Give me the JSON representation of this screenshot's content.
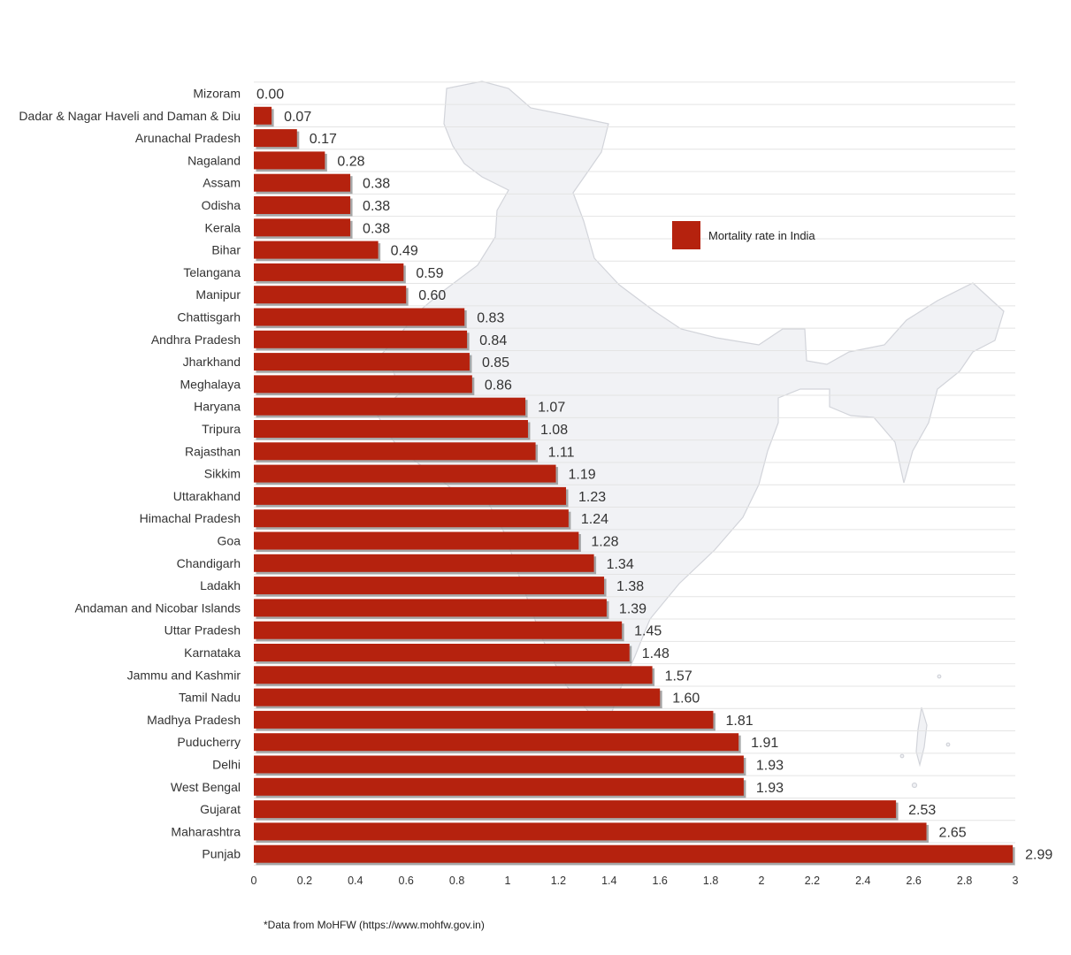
{
  "chart_data": {
    "type": "bar",
    "orientation": "horizontal",
    "categories": [
      "Mizoram",
      "Dadar & Nagar Haveli and Daman & Diu",
      "Arunachal Pradesh",
      "Nagaland",
      "Assam",
      "Odisha",
      "Kerala",
      "Bihar",
      "Telangana",
      "Manipur",
      "Chattisgarh",
      "Andhra Pradesh",
      "Jharkhand",
      "Meghalaya",
      "Haryana",
      "Tripura",
      "Rajasthan",
      "Sikkim",
      "Uttarakhand",
      "Himachal Pradesh",
      "Goa",
      "Chandigarh",
      "Ladakh",
      "Andaman and Nicobar Islands",
      "Uttar Pradesh",
      "Karnataka",
      "Jammu and Kashmir",
      "Tamil Nadu",
      "Madhya Pradesh",
      "Puducherry",
      "Delhi",
      "West Bengal",
      "Gujarat",
      "Maharashtra",
      "Punjab"
    ],
    "series": [
      {
        "name": "Mortality rate in India",
        "values": [
          0.0,
          0.07,
          0.17,
          0.28,
          0.38,
          0.38,
          0.38,
          0.49,
          0.59,
          0.6,
          0.83,
          0.84,
          0.85,
          0.86,
          1.07,
          1.08,
          1.11,
          1.19,
          1.23,
          1.24,
          1.28,
          1.34,
          1.38,
          1.39,
          1.45,
          1.48,
          1.57,
          1.6,
          1.81,
          1.91,
          1.93,
          1.93,
          2.53,
          2.65,
          2.99
        ]
      }
    ],
    "value_labels": [
      "0.00",
      "0.07",
      "0.17",
      "0.28",
      "0.38",
      "0.38",
      "0.38",
      "0.49",
      "0.59",
      "0.60",
      "0.83",
      "0.84",
      "0.85",
      "0.86",
      "1.07",
      "1.08",
      "1.11",
      "1.19",
      "1.23",
      "1.24",
      "1.28",
      "1.34",
      "1.38",
      "1.39",
      "1.45",
      "1.48",
      "1.57",
      "1.60",
      "1.81",
      "1.91",
      "1.93",
      "1.93",
      "2.53",
      "2.65",
      "2.99"
    ],
    "xlim": [
      0,
      3
    ],
    "xticks": [
      0,
      0.2,
      0.4,
      0.6,
      0.8,
      1,
      1.2,
      1.4,
      1.6,
      1.8,
      2,
      2.2,
      2.4,
      2.6,
      2.8,
      3
    ],
    "xtick_labels": [
      "0",
      "0.2",
      "0.4",
      "0.6",
      "0.8",
      "1",
      "1.2",
      "1.4",
      "1.6",
      "1.8",
      "2",
      "2.2",
      "2.4",
      "2.6",
      "2.8",
      "3"
    ],
    "grid": true,
    "legend": {
      "label": "Mortality rate in India",
      "position": "top-right"
    },
    "background": "map of India",
    "title": "",
    "xlabel": "",
    "ylabel": ""
  },
  "colors": {
    "bar": "#b5220e",
    "bar_shadow": "#8a8a8a",
    "text": "#333333",
    "grid": "#e4e4e4",
    "map_fill": "#f1f2f5",
    "map_stroke": "#d2d4da"
  },
  "footnote": "*Data from MoHFW (https://www.mohfw.gov.in)"
}
